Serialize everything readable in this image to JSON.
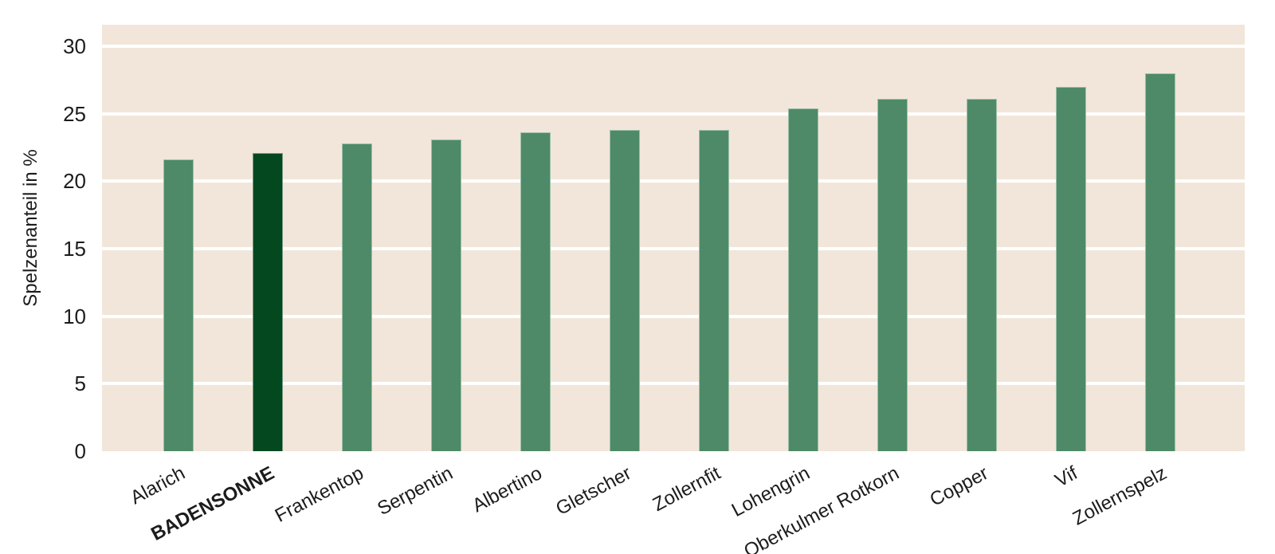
{
  "chart_data": {
    "type": "bar",
    "title": "",
    "xlabel": "",
    "ylabel": "Spelzenanteil in %",
    "categories": [
      "Alarich",
      "BADENSONNE",
      "Frankentop",
      "Serpentin",
      "Albertino",
      "Gletscher",
      "Zollernfit",
      "Lohengrin",
      "Oberkulmer Rotkorn",
      "Copper",
      "Vif",
      "Zollernspelz"
    ],
    "values": [
      21.6,
      22.1,
      22.8,
      23.1,
      23.6,
      23.8,
      23.8,
      25.4,
      26.1,
      26.1,
      27.0,
      28.0
    ],
    "highlight_category": "BADENSONNE",
    "ylim": [
      0,
      31.6
    ],
    "yticks": [
      0,
      5,
      10,
      15,
      20,
      25,
      30
    ],
    "grid": "horizontal",
    "legend": "none",
    "colors": {
      "bar": "#4e8a68",
      "bar_highlight": "#04481f",
      "plot_background": "#f1e6d9",
      "gridline": "#ffffff",
      "text": "#1c1c1c",
      "page_background": "#ffffff"
    }
  }
}
